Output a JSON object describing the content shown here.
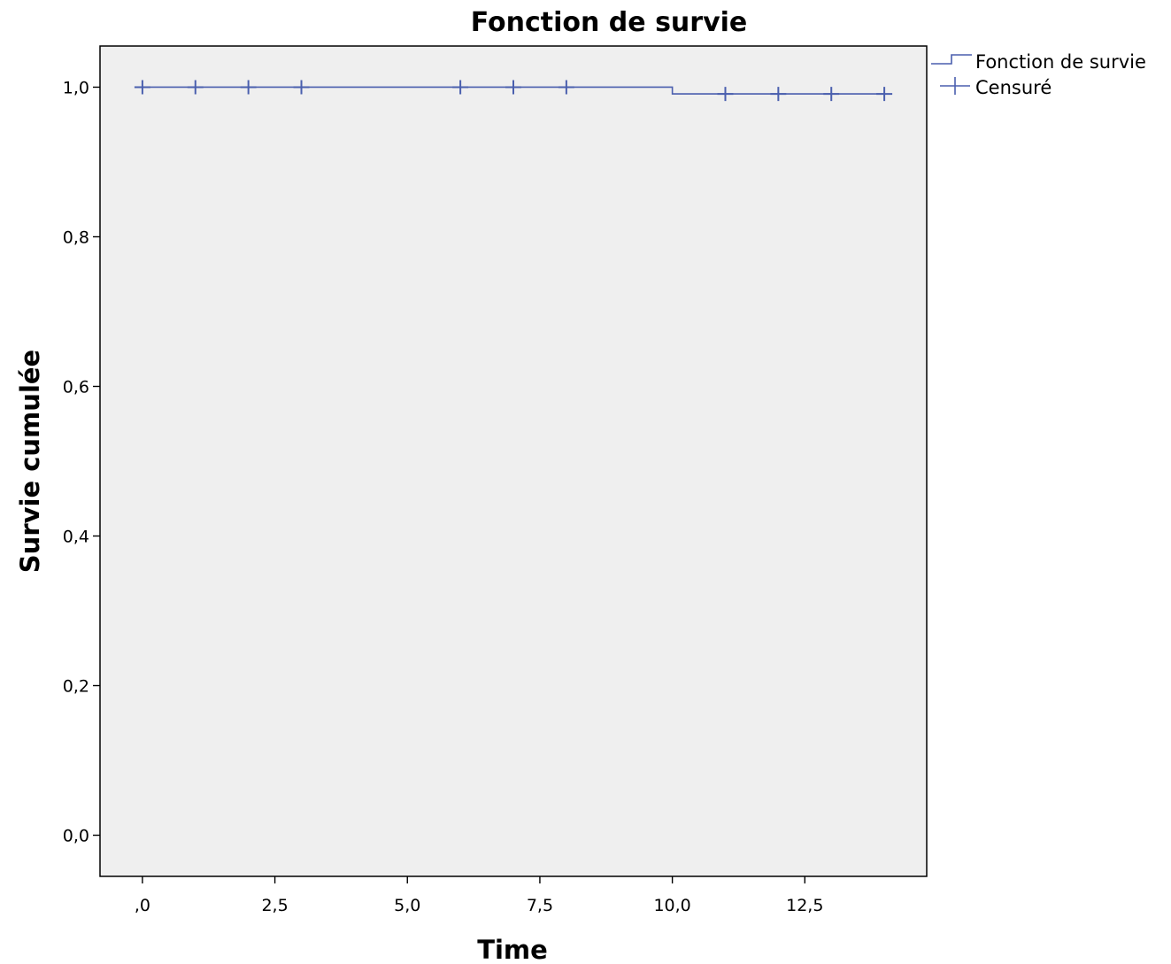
{
  "chart_data": {
    "type": "line",
    "title": "Fonction de survie",
    "xlabel": "Time",
    "ylabel": "Survie cumulée",
    "xlim": [
      -0.8,
      14.8
    ],
    "ylim": [
      -0.055,
      1.055
    ],
    "x_ticks": [
      0,
      2.5,
      5,
      7.5,
      10,
      12.5
    ],
    "x_tick_labels": [
      ",0",
      "2,5",
      "5,0",
      "7,5",
      "10,0",
      "12,5"
    ],
    "y_ticks": [
      0,
      0.2,
      0.4,
      0.6,
      0.8,
      1.0
    ],
    "y_tick_labels": [
      "0,0",
      "0,2",
      "0,4",
      "0,6",
      "0,8",
      "1,0"
    ],
    "grid": false,
    "legend_position": "top-right, outside plot",
    "plot_background": "#efefef",
    "series_color": "#4a5fae",
    "series": [
      {
        "name": "Fonction de survie",
        "kind": "step",
        "x": [
          0,
          10,
          10,
          14
        ],
        "y": [
          1.0,
          1.0,
          0.991,
          0.991
        ]
      },
      {
        "name": "Censuré",
        "kind": "censor-marks",
        "x": [
          0,
          1,
          2,
          3,
          6,
          7,
          8,
          11,
          12,
          13,
          14
        ],
        "y": [
          1.0,
          1.0,
          1.0,
          1.0,
          1.0,
          1.0,
          1.0,
          0.991,
          0.991,
          0.991,
          0.991
        ]
      }
    ]
  }
}
